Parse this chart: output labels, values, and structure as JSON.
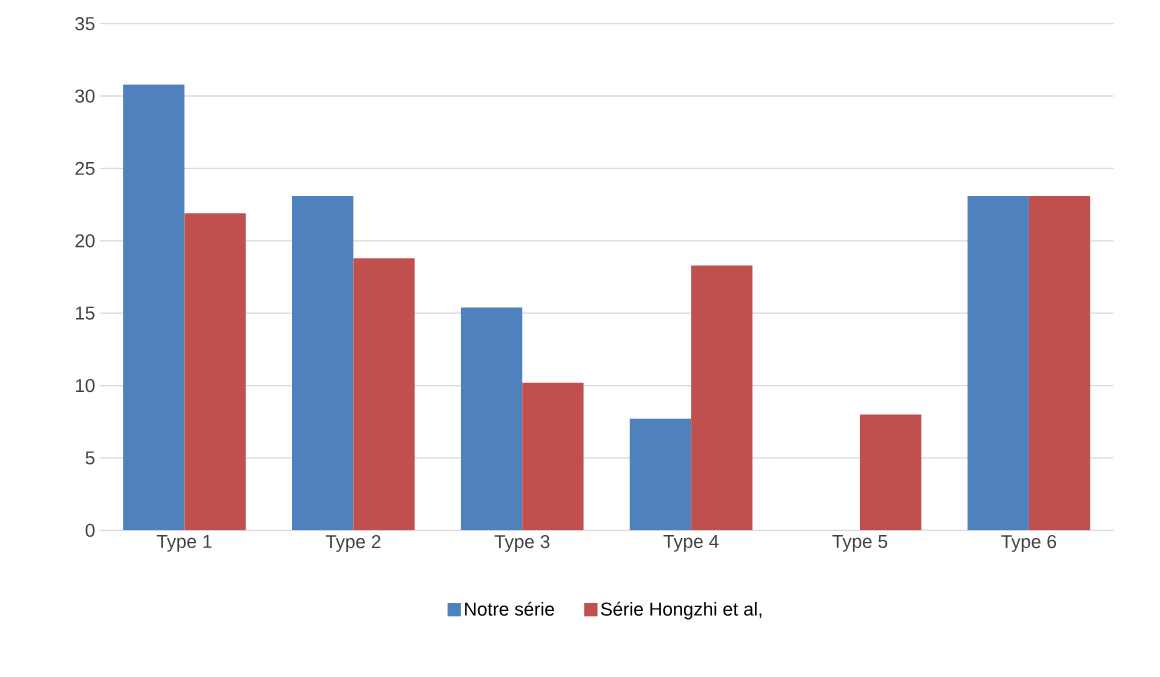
{
  "chart_data": {
    "type": "bar",
    "categories": [
      "Type 1",
      "Type 2",
      "Type 3",
      "Type 4",
      "Type 5",
      "Type 6"
    ],
    "series": [
      {
        "name": "Notre série",
        "color": "#4f81bd",
        "values": [
          30.8,
          23.1,
          15.4,
          7.7,
          0,
          23.1
        ]
      },
      {
        "name": "Série Hongzhi et al,",
        "color": "#c0504d",
        "values": [
          21.9,
          18.8,
          10.2,
          18.3,
          8.0,
          23.1
        ]
      }
    ],
    "ylim": [
      0,
      35
    ],
    "yticks": [
      0,
      5,
      10,
      15,
      20,
      25,
      30,
      35
    ],
    "grid": "y",
    "legend": "bottom"
  }
}
